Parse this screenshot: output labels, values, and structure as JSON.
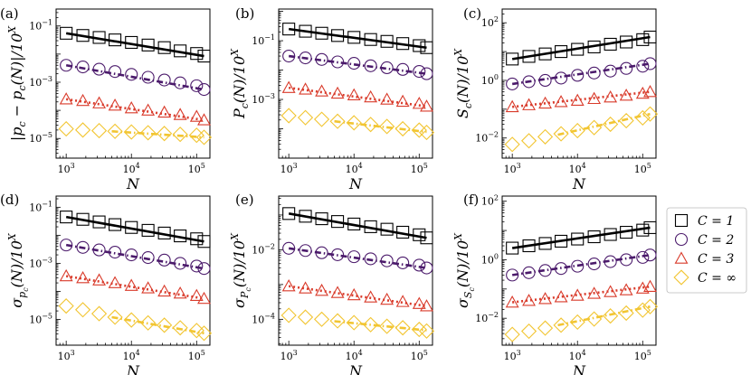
{
  "series_style": [
    {
      "key": "C1",
      "color": "#000000",
      "marker": "square",
      "line": "solid"
    },
    {
      "key": "C2",
      "color": "#4b1a6b",
      "marker": "circle",
      "line": "dashdot"
    },
    {
      "key": "C3",
      "color": "#d93b2b",
      "marker": "triangle",
      "line": "dotted"
    },
    {
      "key": "Cinf",
      "color": "#f2c531",
      "marker": "diamond",
      "line": "dashdot"
    }
  ],
  "legend": {
    "entries": [
      "C = 1",
      "C = 2",
      "C = 3",
      "C = ∞"
    ]
  },
  "chart_data": [
    {
      "panel": "(a)",
      "type": "scatter",
      "ylabel": "|p_c − p_c(N)|/10^X",
      "xlabel": "N",
      "xscale": "log",
      "yscale": "log",
      "xlim": [
        700,
        160000
      ],
      "ylim": [
        2e-06,
        0.4
      ],
      "xticks": [
        {
          "v": 1000,
          "label": "10^3"
        },
        {
          "v": 10000,
          "label": "10^4"
        },
        {
          "v": 100000,
          "label": "10^5"
        }
      ],
      "yticks": [
        {
          "v": 0.1,
          "label": "10^-1"
        },
        {
          "v": 0.001,
          "label": "10^-3"
        },
        {
          "v": 1e-05,
          "label": "10^-5"
        }
      ],
      "x": [
        1000,
        1800,
        3200,
        5600,
        10000,
        18000,
        32000,
        56000,
        100000,
        130000
      ],
      "series": [
        {
          "name": "C = 1",
          "values": [
            0.055,
            0.046,
            0.039,
            0.032,
            0.026,
            0.021,
            0.017,
            0.013,
            0.0105,
            0.0085
          ],
          "fit": [
            1000,
            0.055,
            130000,
            0.0085
          ]
        },
        {
          "name": "C = 2",
          "values": [
            0.004,
            0.0035,
            0.0029,
            0.0024,
            0.0019,
            0.0015,
            0.0012,
            0.00095,
            0.00075,
            0.00055
          ],
          "fit": [
            1000,
            0.004,
            130000,
            0.00055
          ]
        },
        {
          "name": "C = 3",
          "values": [
            0.00025,
            0.00022,
            0.00018,
            0.00015,
            0.00012,
            0.0001,
            8.5e-05,
            7e-05,
            6e-05,
            4.5e-05
          ],
          "fit": [
            1000,
            0.00025,
            130000,
            4.5e-05
          ]
        },
        {
          "name": "C = ∞",
          "values": [
            2.2e-05,
            2e-05,
            1.9e-05,
            1.8e-05,
            1.7e-05,
            1.6e-05,
            1.5e-05,
            1.4e-05,
            1.3e-05,
            1.1e-05
          ],
          "fit": [
            5000,
            1.8e-05,
            130000,
            1.1e-05
          ]
        }
      ]
    },
    {
      "panel": "(b)",
      "type": "scatter",
      "ylabel": "P_c(N)/10^X",
      "xlabel": "N",
      "xscale": "log",
      "yscale": "log",
      "xlim": [
        700,
        160000
      ],
      "ylim": [
        1e-05,
        1.2
      ],
      "xticks": [
        {
          "v": 1000,
          "label": "10^3"
        },
        {
          "v": 10000,
          "label": "10^4"
        },
        {
          "v": 100000,
          "label": "10^5"
        }
      ],
      "yticks": [
        {
          "v": 0.1,
          "label": "10^-1"
        },
        {
          "v": 0.001,
          "label": "10^-3"
        }
      ],
      "x": [
        1000,
        1800,
        3200,
        5600,
        10000,
        18000,
        32000,
        56000,
        100000,
        130000
      ],
      "series": [
        {
          "name": "C = 1",
          "values": [
            0.25,
            0.21,
            0.18,
            0.15,
            0.13,
            0.11,
            0.095,
            0.08,
            0.068,
            0.058
          ],
          "fit": [
            1000,
            0.25,
            130000,
            0.058
          ]
        },
        {
          "name": "C = 2",
          "values": [
            0.03,
            0.026,
            0.023,
            0.019,
            0.017,
            0.014,
            0.012,
            0.0105,
            0.009,
            0.0075
          ],
          "fit": [
            1000,
            0.03,
            130000,
            0.0075
          ]
        },
        {
          "name": "C = 3",
          "values": [
            0.0025,
            0.0022,
            0.0019,
            0.0016,
            0.0014,
            0.0012,
            0.001,
            0.00085,
            0.00072,
            0.00058
          ],
          "fit": [
            1000,
            0.0025,
            130000,
            0.00058
          ]
        },
        {
          "name": "C = ∞",
          "values": [
            0.00028,
            0.00024,
            0.00021,
            0.00018,
            0.00016,
            0.00014,
            0.00012,
            0.0001,
            9e-05,
            7.5e-05
          ],
          "fit": [
            5000,
            0.00018,
            130000,
            7.8e-05
          ]
        }
      ]
    },
    {
      "panel": "(c)",
      "type": "scatter",
      "ylabel": "S_c(N)/10^X",
      "xlabel": "N",
      "xscale": "log",
      "yscale": "log",
      "xlim": [
        700,
        160000
      ],
      "ylim": [
        0.002,
        300
      ],
      "xticks": [
        {
          "v": 1000,
          "label": "10^3"
        },
        {
          "v": 10000,
          "label": "10^4"
        },
        {
          "v": 100000,
          "label": "10^5"
        }
      ],
      "yticks": [
        {
          "v": 100,
          "label": "10^2"
        },
        {
          "v": 1,
          "label": "10^0"
        },
        {
          "v": 0.01,
          "label": "10^-2"
        }
      ],
      "x": [
        1000,
        1800,
        3200,
        5600,
        10000,
        18000,
        32000,
        56000,
        100000,
        130000
      ],
      "series": [
        {
          "name": "C = 1",
          "values": [
            5.5,
            6.8,
            8.3,
            10,
            12,
            14.5,
            18,
            21.5,
            26,
            32
          ],
          "fit": [
            1000,
            5.5,
            130000,
            32
          ]
        },
        {
          "name": "C = 2",
          "values": [
            0.75,
            0.9,
            1.0,
            1.2,
            1.5,
            1.8,
            2.1,
            2.6,
            3.1,
            3.8
          ],
          "fit": [
            1000,
            0.75,
            130000,
            3.8
          ]
        },
        {
          "name": "C = 3",
          "values": [
            0.12,
            0.14,
            0.16,
            0.18,
            0.2,
            0.23,
            0.26,
            0.3,
            0.35,
            0.4
          ],
          "fit": [
            1000,
            0.12,
            130000,
            0.4
          ]
        },
        {
          "name": "C = ∞",
          "values": [
            0.006,
            0.008,
            0.011,
            0.014,
            0.018,
            0.023,
            0.03,
            0.04,
            0.05,
            0.068
          ],
          "fit": [
            5000,
            0.013,
            130000,
            0.068
          ]
        }
      ]
    },
    {
      "panel": "(d)",
      "type": "scatter",
      "ylabel": "σ_{p_c}(N)/10^X",
      "xlabel": "N",
      "xscale": "log",
      "yscale": "log",
      "xlim": [
        700,
        160000
      ],
      "ylim": [
        1.2e-06,
        0.25
      ],
      "xticks": [
        {
          "v": 1000,
          "label": "10^3"
        },
        {
          "v": 10000,
          "label": "10^4"
        },
        {
          "v": 100000,
          "label": "10^5"
        }
      ],
      "yticks": [
        {
          "v": 0.1,
          "label": "10^-1"
        },
        {
          "v": 0.001,
          "label": "10^-3"
        },
        {
          "v": 1e-05,
          "label": "10^-5"
        }
      ],
      "x": [
        1000,
        1800,
        3200,
        5600,
        10000,
        18000,
        32000,
        56000,
        100000,
        130000
      ],
      "series": [
        {
          "name": "C = 1",
          "values": [
            0.045,
            0.037,
            0.03,
            0.024,
            0.019,
            0.015,
            0.012,
            0.0095,
            0.0075,
            0.006
          ],
          "fit": [
            1000,
            0.045,
            130000,
            0.006
          ]
        },
        {
          "name": "C = 2",
          "values": [
            0.0045,
            0.0037,
            0.003,
            0.0025,
            0.002,
            0.0016,
            0.0013,
            0.001,
            0.0008,
            0.00065
          ],
          "fit": [
            1000,
            0.0045,
            130000,
            0.00065
          ]
        },
        {
          "name": "C = 3",
          "values": [
            0.00035,
            0.0003,
            0.00025,
            0.0002,
            0.00016,
            0.00013,
            0.0001,
            8.5e-05,
            7e-05,
            5.5e-05
          ],
          "fit": [
            1000,
            0.00035,
            130000,
            5.5e-05
          ]
        },
        {
          "name": "C = ∞",
          "values": [
            3e-05,
            2.2e-05,
            1.6e-05,
            1.2e-05,
            9.5e-06,
            7.5e-06,
            6.2e-06,
            5e-06,
            4e-06,
            3.2e-06
          ],
          "fit": [
            5000,
            1.2e-05,
            130000,
            3.2e-06
          ]
        }
      ]
    },
    {
      "panel": "(e)",
      "type": "scatter",
      "ylabel": "σ_{P_c}(N)/10^X",
      "xlabel": "N",
      "xscale": "log",
      "yscale": "log",
      "xlim": [
        700,
        160000
      ],
      "ylim": [
        1.8e-05,
        0.35
      ],
      "xticks": [
        {
          "v": 1000,
          "label": "10^3"
        },
        {
          "v": 10000,
          "label": "10^4"
        },
        {
          "v": 100000,
          "label": "10^5"
        }
      ],
      "yticks": [
        {
          "v": 0.01,
          "label": "10^-2"
        },
        {
          "v": 0.0001,
          "label": "10^-4"
        }
      ],
      "x": [
        1000,
        1800,
        3200,
        5600,
        10000,
        18000,
        32000,
        56000,
        100000,
        130000
      ],
      "series": [
        {
          "name": "C = 1",
          "values": [
            0.11,
            0.092,
            0.078,
            0.065,
            0.055,
            0.046,
            0.039,
            0.032,
            0.027,
            0.022
          ],
          "fit": [
            1000,
            0.11,
            130000,
            0.022
          ]
        },
        {
          "name": "C = 2",
          "values": [
            0.011,
            0.0095,
            0.0082,
            0.0072,
            0.0063,
            0.0055,
            0.0048,
            0.0042,
            0.0036,
            0.003
          ],
          "fit": [
            1000,
            0.011,
            130000,
            0.003
          ]
        },
        {
          "name": "C = 3",
          "values": [
            0.0009,
            0.00078,
            0.00067,
            0.00058,
            0.0005,
            0.00043,
            0.00037,
            0.00032,
            0.00028,
            0.00024
          ],
          "fit": [
            1000,
            0.0009,
            130000,
            0.00024
          ]
        },
        {
          "name": "C = ∞",
          "values": [
            0.00013,
            0.000115,
            0.0001,
            9e-05,
            8e-05,
            7e-05,
            6.3e-05,
            5.7e-05,
            5.1e-05,
            4.6e-05
          ],
          "fit": [
            5000,
            8.8e-05,
            130000,
            4.8e-05
          ]
        }
      ]
    },
    {
      "panel": "(f)",
      "type": "scatter",
      "ylabel": "σ_{S_c}(N)/10^X",
      "xlabel": "N",
      "xscale": "log",
      "yscale": "log",
      "xlim": [
        700,
        160000
      ],
      "ylim": [
        0.0012,
        150
      ],
      "xticks": [
        {
          "v": 1000,
          "label": "10^3"
        },
        {
          "v": 10000,
          "label": "10^4"
        },
        {
          "v": 100000,
          "label": "10^5"
        }
      ],
      "yticks": [
        {
          "v": 100,
          "label": "10^2"
        },
        {
          "v": 1,
          "label": "10^0"
        },
        {
          "v": 0.01,
          "label": "10^-2"
        }
      ],
      "x": [
        1000,
        1800,
        3200,
        5600,
        10000,
        18000,
        32000,
        56000,
        100000,
        130000
      ],
      "series": [
        {
          "name": "C = 1",
          "values": [
            2.5,
            3.0,
            3.6,
            4.3,
            5.1,
            6.1,
            7.3,
            8.7,
            10.3,
            12.5
          ],
          "fit": [
            1000,
            2.5,
            130000,
            12.5
          ]
        },
        {
          "name": "C = 2",
          "values": [
            0.3,
            0.36,
            0.43,
            0.5,
            0.6,
            0.72,
            0.86,
            1.0,
            1.2,
            1.45
          ],
          "fit": [
            1000,
            0.3,
            130000,
            1.45
          ]
        },
        {
          "name": "C = 3",
          "values": [
            0.035,
            0.04,
            0.046,
            0.053,
            0.06,
            0.07,
            0.08,
            0.092,
            0.105,
            0.12
          ],
          "fit": [
            1000,
            0.035,
            130000,
            0.12
          ]
        },
        {
          "name": "C = ∞",
          "values": [
            0.0028,
            0.0036,
            0.0046,
            0.0058,
            0.0074,
            0.0094,
            0.012,
            0.015,
            0.019,
            0.025
          ],
          "fit": [
            5000,
            0.0058,
            130000,
            0.025
          ]
        }
      ]
    }
  ]
}
